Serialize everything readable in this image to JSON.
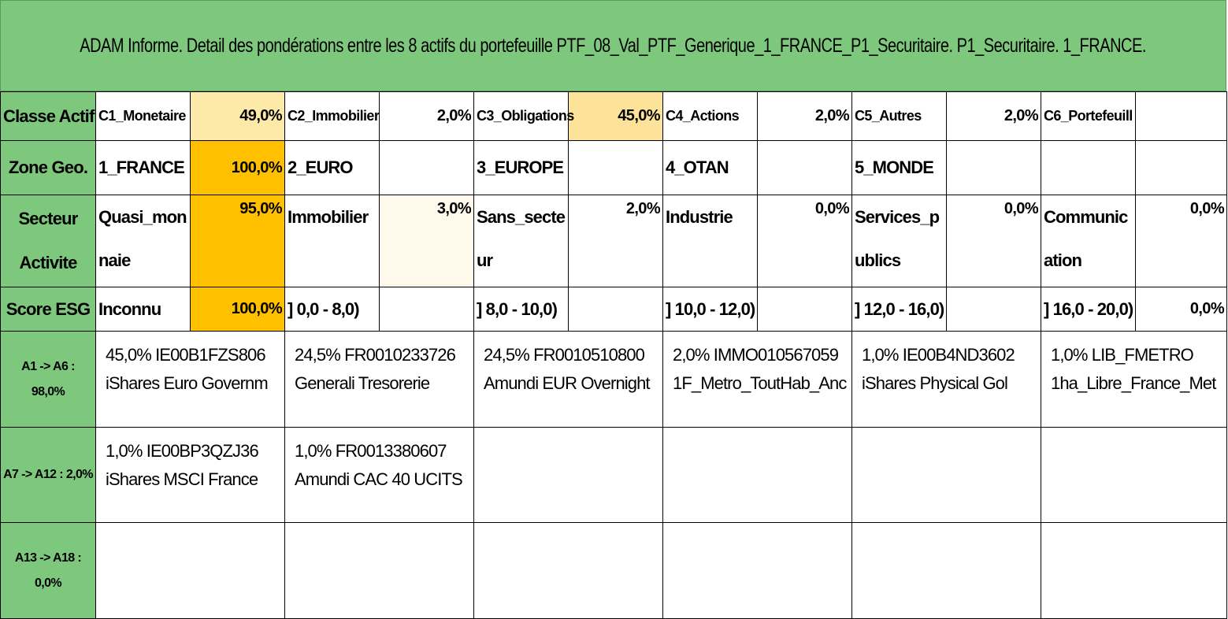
{
  "title": "ADAM Informe. Detail des pondérations entre les 8 actifs du portefeuille PTF_08_Val_PTF_Generique_1_FRANCE_P1_Securitaire. P1_Securitaire. 1_FRANCE.",
  "rows": {
    "classe_actif": {
      "header": "Classe Actif",
      "cells": [
        {
          "label": "C1_Monetaire",
          "value": "49,0%"
        },
        {
          "label": "C2_Immobilier",
          "value": "2,0%"
        },
        {
          "label": "C3_Obligations",
          "value": "45,0%"
        },
        {
          "label": "C4_Actions",
          "value": "2,0%"
        },
        {
          "label": "C5_Autres",
          "value": "2,0%"
        },
        {
          "label": "C6_Portefeuill",
          "value": ""
        }
      ]
    },
    "zone_geo": {
      "header": "Zone Geo.",
      "cells": [
        {
          "label": "1_FRANCE",
          "value": "100,0%"
        },
        {
          "label": "2_EURO",
          "value": ""
        },
        {
          "label": "3_EUROPE",
          "value": ""
        },
        {
          "label": "4_OTAN",
          "value": ""
        },
        {
          "label": "5_MONDE",
          "value": ""
        },
        {
          "label": "",
          "value": ""
        }
      ]
    },
    "secteur_activite": {
      "header_line1": "Secteur",
      "header_line2": "Activite",
      "cells": [
        {
          "label": "Quasi_monnaie",
          "value": "95,0%"
        },
        {
          "label": "Immobilier",
          "value": "3,0%"
        },
        {
          "label": "Sans_secteur",
          "value": "2,0%"
        },
        {
          "label": "Industrie",
          "value": "0,0%"
        },
        {
          "label": "Services_publics",
          "value": "0,0%"
        },
        {
          "label": "Communication",
          "value": "0,0%"
        }
      ]
    },
    "score_esg": {
      "header": "Score ESG",
      "cells": [
        {
          "label": "Inconnu",
          "value": "100,0%"
        },
        {
          "label": "] 0,0 - 8,0)",
          "value": ""
        },
        {
          "label": "] 8,0 - 10,0)",
          "value": ""
        },
        {
          "label": "] 10,0 - 12,0)",
          "value": ""
        },
        {
          "label": "] 12,0 - 16,0)",
          "value": ""
        },
        {
          "label": "] 16,0 - 20,0)",
          "value": "0,0%"
        }
      ]
    }
  },
  "asset_groups": [
    {
      "header_line1": "A1 -> A6 :",
      "header_line2": "98,0%",
      "assets": [
        {
          "code": "45,0% IE00B1FZS806",
          "name": "iShares Euro Governm"
        },
        {
          "code": "24,5% FR0010233726",
          "name": "Generali Tresorerie"
        },
        {
          "code": "24,5% FR0010510800",
          "name": "Amundi EUR Overnight"
        },
        {
          "code": "2,0% IMMO010567059",
          "name": "1F_Metro_ToutHab_Anc"
        },
        {
          "code": "1,0% IE00B4ND3602",
          "name": "iShares Physical Gol"
        },
        {
          "code": "1,0% LIB_FMETRO",
          "name": "1ha_Libre_France_Met"
        }
      ]
    },
    {
      "header_line1": "A7 -> A12 : 2,0%",
      "header_line2": "",
      "assets": [
        {
          "code": "1,0% IE00BP3QZJ36",
          "name": "iShares MSCI France"
        },
        {
          "code": "1,0% FR0013380607",
          "name": "Amundi CAC 40 UCITS"
        },
        {
          "code": "",
          "name": ""
        },
        {
          "code": "",
          "name": ""
        },
        {
          "code": "",
          "name": ""
        },
        {
          "code": "",
          "name": ""
        }
      ]
    },
    {
      "header_line1": "A13 -> A18 :",
      "header_line2": "0,0%",
      "assets": [
        {
          "code": "",
          "name": ""
        },
        {
          "code": "",
          "name": ""
        },
        {
          "code": "",
          "name": ""
        },
        {
          "code": "",
          "name": ""
        },
        {
          "code": "",
          "name": ""
        },
        {
          "code": "",
          "name": ""
        }
      ]
    }
  ],
  "colors": {
    "header_green": "#7ec87e",
    "highlight_orange": "#ffc000",
    "highlight_yellow": "#fde9a8"
  }
}
